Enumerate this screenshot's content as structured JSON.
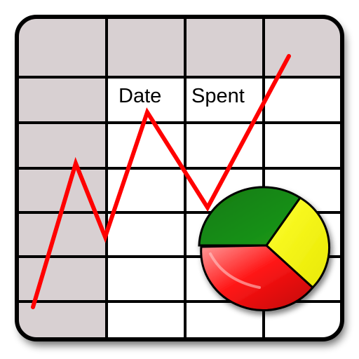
{
  "icon": {
    "name": "spreadsheet-chart-icon",
    "header": {
      "date_label": "Date",
      "spent_label": "Spent"
    },
    "colors": {
      "frame_border": "#000000",
      "header_fill": "#d8d0d2",
      "cell_fill": "#ffffff",
      "grid_line": "#000000",
      "trend_line": "#ff0000",
      "pie_green": "#138a12",
      "pie_yellow": "#ffff00",
      "pie_red": "#f01010"
    },
    "pie_shares": {
      "green": 0.37,
      "yellow": 0.17,
      "red": 0.46
    }
  }
}
